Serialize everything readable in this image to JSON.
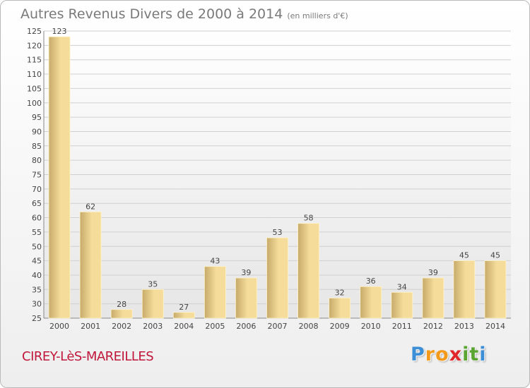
{
  "chart_data": {
    "type": "bar",
    "title": "Autres Revenus Divers de 2000 à 2014",
    "subtitle": "(en milliers d'€)",
    "categories": [
      "2000",
      "2001",
      "2002",
      "2003",
      "2004",
      "2005",
      "2006",
      "2007",
      "2008",
      "2009",
      "2010",
      "2011",
      "2012",
      "2013",
      "2014"
    ],
    "values": [
      123,
      62,
      28,
      35,
      27,
      43,
      39,
      53,
      58,
      32,
      36,
      34,
      39,
      45,
      45
    ],
    "ylim": [
      25,
      125
    ],
    "yticks": [
      25,
      30,
      35,
      40,
      45,
      50,
      55,
      60,
      65,
      70,
      75,
      80,
      85,
      90,
      95,
      100,
      105,
      110,
      115,
      120,
      125
    ],
    "grid": true,
    "bar_color_light": "#f5dc9a",
    "bar_color_dark": "#c6aa6b"
  },
  "footer": {
    "city": "CIREY-LèS-MAREILLES",
    "city_color": "#c0163b",
    "logo_letters": [
      {
        "ch": "P",
        "color": "#3c8fd6"
      },
      {
        "ch": "r",
        "color": "#f39a1b"
      },
      {
        "ch": "o",
        "color": "#f39a1b"
      },
      {
        "ch": "x",
        "color": "#e0262b"
      },
      {
        "ch": "i",
        "color": "#5aa532"
      },
      {
        "ch": "t",
        "color": "#5aa532"
      },
      {
        "ch": "i",
        "color": "#3c8fd6"
      }
    ]
  }
}
